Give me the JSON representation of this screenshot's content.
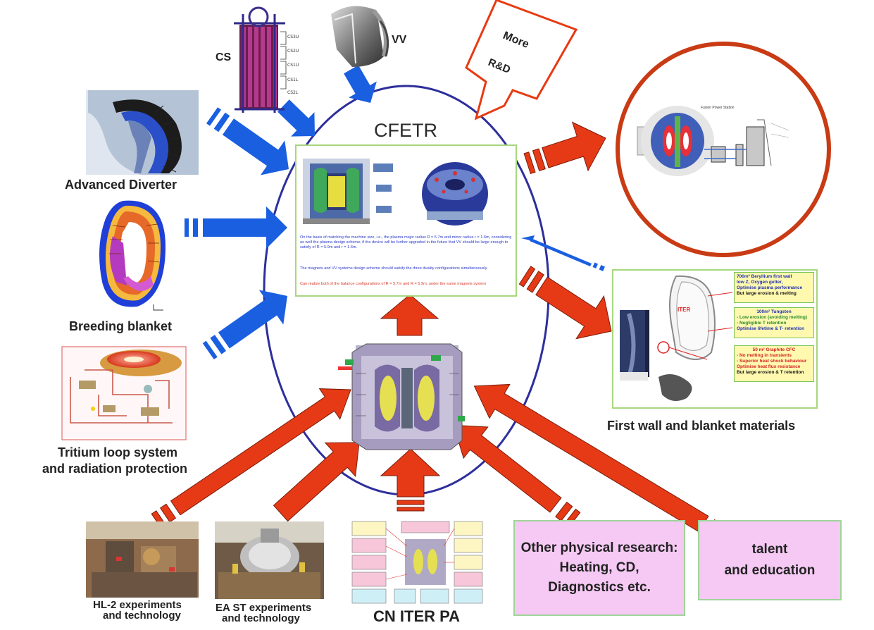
{
  "center": {
    "title": "CFETR",
    "panel_text_1": "On the basis of matching the machine size, i.e., the plasma major radius R = 5.7m and minor radius r = 1.6m, considering as well the plasma design scheme; if the device will be further upgraded in the future that VV should be large enough to satisfy of R = 5.9m and r = 1.6m.",
    "panel_text_2": "The magnets and VV systems design scheme should satisfy the three duality configurations simultaneously.",
    "panel_text_3": "Can realize both of the balance configurations of R = 5.7m and R = 5.9m, under the same magnets system"
  },
  "callout": {
    "line1": "More",
    "line2": "R&D"
  },
  "labels": {
    "cs": "CS",
    "vv": "VV",
    "advanced_diverter": "Advanced Diverter",
    "breeding_blanket": "Breeding blanket",
    "tritium_line1": "Tritium loop system",
    "tritium_line2": "and radiation protection",
    "first_wall": "First wall and blanket materials",
    "hl2_line1": "HL-2 experiments",
    "hl2_line2": "and technology",
    "east_line1": "EA ST experiments",
    "east_line2": "and technology",
    "cn_iter": "CN ITER PA"
  },
  "boxes": {
    "physics_line1": "Other physical research:",
    "physics_line2": "Heating, CD,",
    "physics_line3": "Diagnostics etc.",
    "talent_line1": "talent",
    "talent_line2": "and education"
  },
  "materials": {
    "iter_label": "ITER",
    "box1_line1": "700m² Beryllium first wall",
    "box1_line2": "low Z, Oxygen getter,",
    "box1_line3": "Optimise plasma performance",
    "box1_line4": "But large erosion & melting",
    "box2_line1": "100m² Tungsten",
    "box2_line2": "- Low erosion (avoiding melting)",
    "box2_line3": "- Negligible T retention",
    "box2_line4": "Optimise lifetime & T- retention",
    "box3_line1": "50 m² Graphite CFC",
    "box3_line2": "- No melting in transients",
    "box3_line3": "- Superior heat shock behaviour",
    "box3_line4": "Optimise heat flux resistance",
    "box3_line5": "But large erosion & T retention"
  },
  "power_station": {
    "title": "Fusion Power Station"
  },
  "colors": {
    "blue_arrow": "#1a5fe0",
    "red_arrow": "#e63a17",
    "ellipse": "#2d2f9c",
    "callout_border": "#e83a12",
    "pink_box": "#f5c9f3",
    "green_border": "#9fd49a"
  }
}
